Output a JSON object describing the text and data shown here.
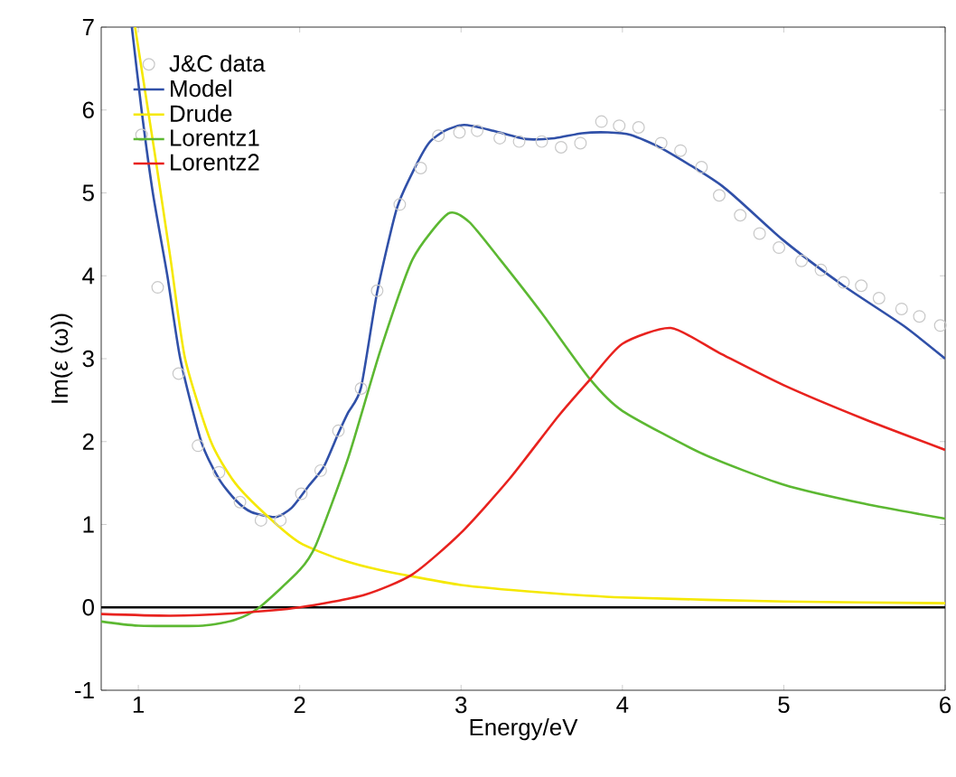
{
  "chart_data": {
    "type": "line",
    "xlabel": "Energy/eV",
    "ylabel": "Im(ε (ω))",
    "xlim": [
      0.77,
      6
    ],
    "ylim": [
      -1,
      7
    ],
    "xticks": [
      1,
      2,
      3,
      4,
      5,
      6
    ],
    "yticks": [
      -1,
      0,
      1,
      2,
      3,
      4,
      5,
      6,
      7
    ],
    "legend": "top left",
    "ref_lines": [
      {
        "axis": "y",
        "value": 0,
        "color": "#000000"
      }
    ],
    "series": [
      {
        "name": "J&C data",
        "type": "scatter",
        "marker": "circle",
        "color": "#c8c8c8",
        "x": [
          1.02,
          1.12,
          1.25,
          1.37,
          1.5,
          1.63,
          1.76,
          1.88,
          2.01,
          2.13,
          2.24,
          2.38,
          2.48,
          2.62,
          2.75,
          2.86,
          2.99,
          3.1,
          3.24,
          3.36,
          3.5,
          3.62,
          3.74,
          3.87,
          3.98,
          4.1,
          4.24,
          4.36,
          4.49,
          4.6,
          4.73,
          4.85,
          4.97,
          5.11,
          5.23,
          5.37,
          5.48,
          5.59,
          5.73,
          5.84,
          5.97
        ],
        "values": [
          5.7,
          3.86,
          2.82,
          1.95,
          1.63,
          1.27,
          1.05,
          1.05,
          1.37,
          1.65,
          2.13,
          2.64,
          3.82,
          4.86,
          5.3,
          5.69,
          5.73,
          5.75,
          5.66,
          5.62,
          5.62,
          5.55,
          5.6,
          5.86,
          5.81,
          5.79,
          5.6,
          5.51,
          5.31,
          4.97,
          4.73,
          4.51,
          4.34,
          4.18,
          4.07,
          3.92,
          3.88,
          3.73,
          3.6,
          3.51,
          3.4
        ]
      },
      {
        "name": "Model",
        "color": "#3050a8",
        "x": [
          0.96,
          1.02,
          1.09,
          1.18,
          1.26,
          1.39,
          1.5,
          1.6,
          1.7,
          1.85,
          1.95,
          2.05,
          2.15,
          2.24,
          2.3,
          2.38,
          2.48,
          2.6,
          2.7,
          2.8,
          2.9,
          3.02,
          3.2,
          3.4,
          3.58,
          3.75,
          3.91,
          4.05,
          4.25,
          4.62,
          4.99,
          5.37,
          5.74,
          6.0
        ],
        "values": [
          7.0,
          6.0,
          5.0,
          4.0,
          3.0,
          2.0,
          1.55,
          1.3,
          1.15,
          1.09,
          1.2,
          1.45,
          1.7,
          2.1,
          2.35,
          2.65,
          3.8,
          4.8,
          5.25,
          5.6,
          5.75,
          5.82,
          5.75,
          5.65,
          5.66,
          5.72,
          5.73,
          5.7,
          5.53,
          5.08,
          4.44,
          3.88,
          3.4,
          3.0
        ]
      },
      {
        "name": "Drude",
        "color": "#f5e800",
        "x": [
          0.98,
          1.1,
          1.2,
          1.29,
          1.45,
          1.6,
          1.8,
          2.0,
          2.25,
          2.5,
          3.0,
          3.5,
          4.0,
          5.0,
          6.0
        ],
        "values": [
          7.0,
          5.5,
          4.2,
          3.0,
          2.0,
          1.5,
          1.1,
          0.78,
          0.58,
          0.45,
          0.27,
          0.18,
          0.12,
          0.07,
          0.05
        ]
      },
      {
        "name": "Lorentz1",
        "color": "#5cb832",
        "x": [
          0.77,
          1.0,
          1.4,
          1.6,
          1.75,
          2.0,
          2.1,
          2.3,
          2.5,
          2.7,
          2.92,
          3.05,
          3.24,
          3.5,
          3.8,
          4.0,
          4.5,
          5.0,
          5.5,
          6.0
        ],
        "values": [
          -0.17,
          -0.22,
          -0.22,
          -0.15,
          0.0,
          0.45,
          0.75,
          1.8,
          3.1,
          4.2,
          4.75,
          4.65,
          4.2,
          3.55,
          2.75,
          2.37,
          1.85,
          1.48,
          1.25,
          1.07
        ]
      },
      {
        "name": "Lorentz2",
        "color": "#e8221e",
        "x": [
          0.77,
          1.2,
          1.6,
          2.0,
          2.4,
          2.7,
          3.0,
          3.3,
          3.6,
          3.8,
          4.0,
          4.3,
          4.6,
          5.0,
          5.5,
          6.0
        ],
        "values": [
          -0.08,
          -0.1,
          -0.07,
          0.0,
          0.15,
          0.4,
          0.9,
          1.55,
          2.3,
          2.75,
          3.18,
          3.37,
          3.07,
          2.68,
          2.27,
          1.9
        ]
      }
    ]
  }
}
